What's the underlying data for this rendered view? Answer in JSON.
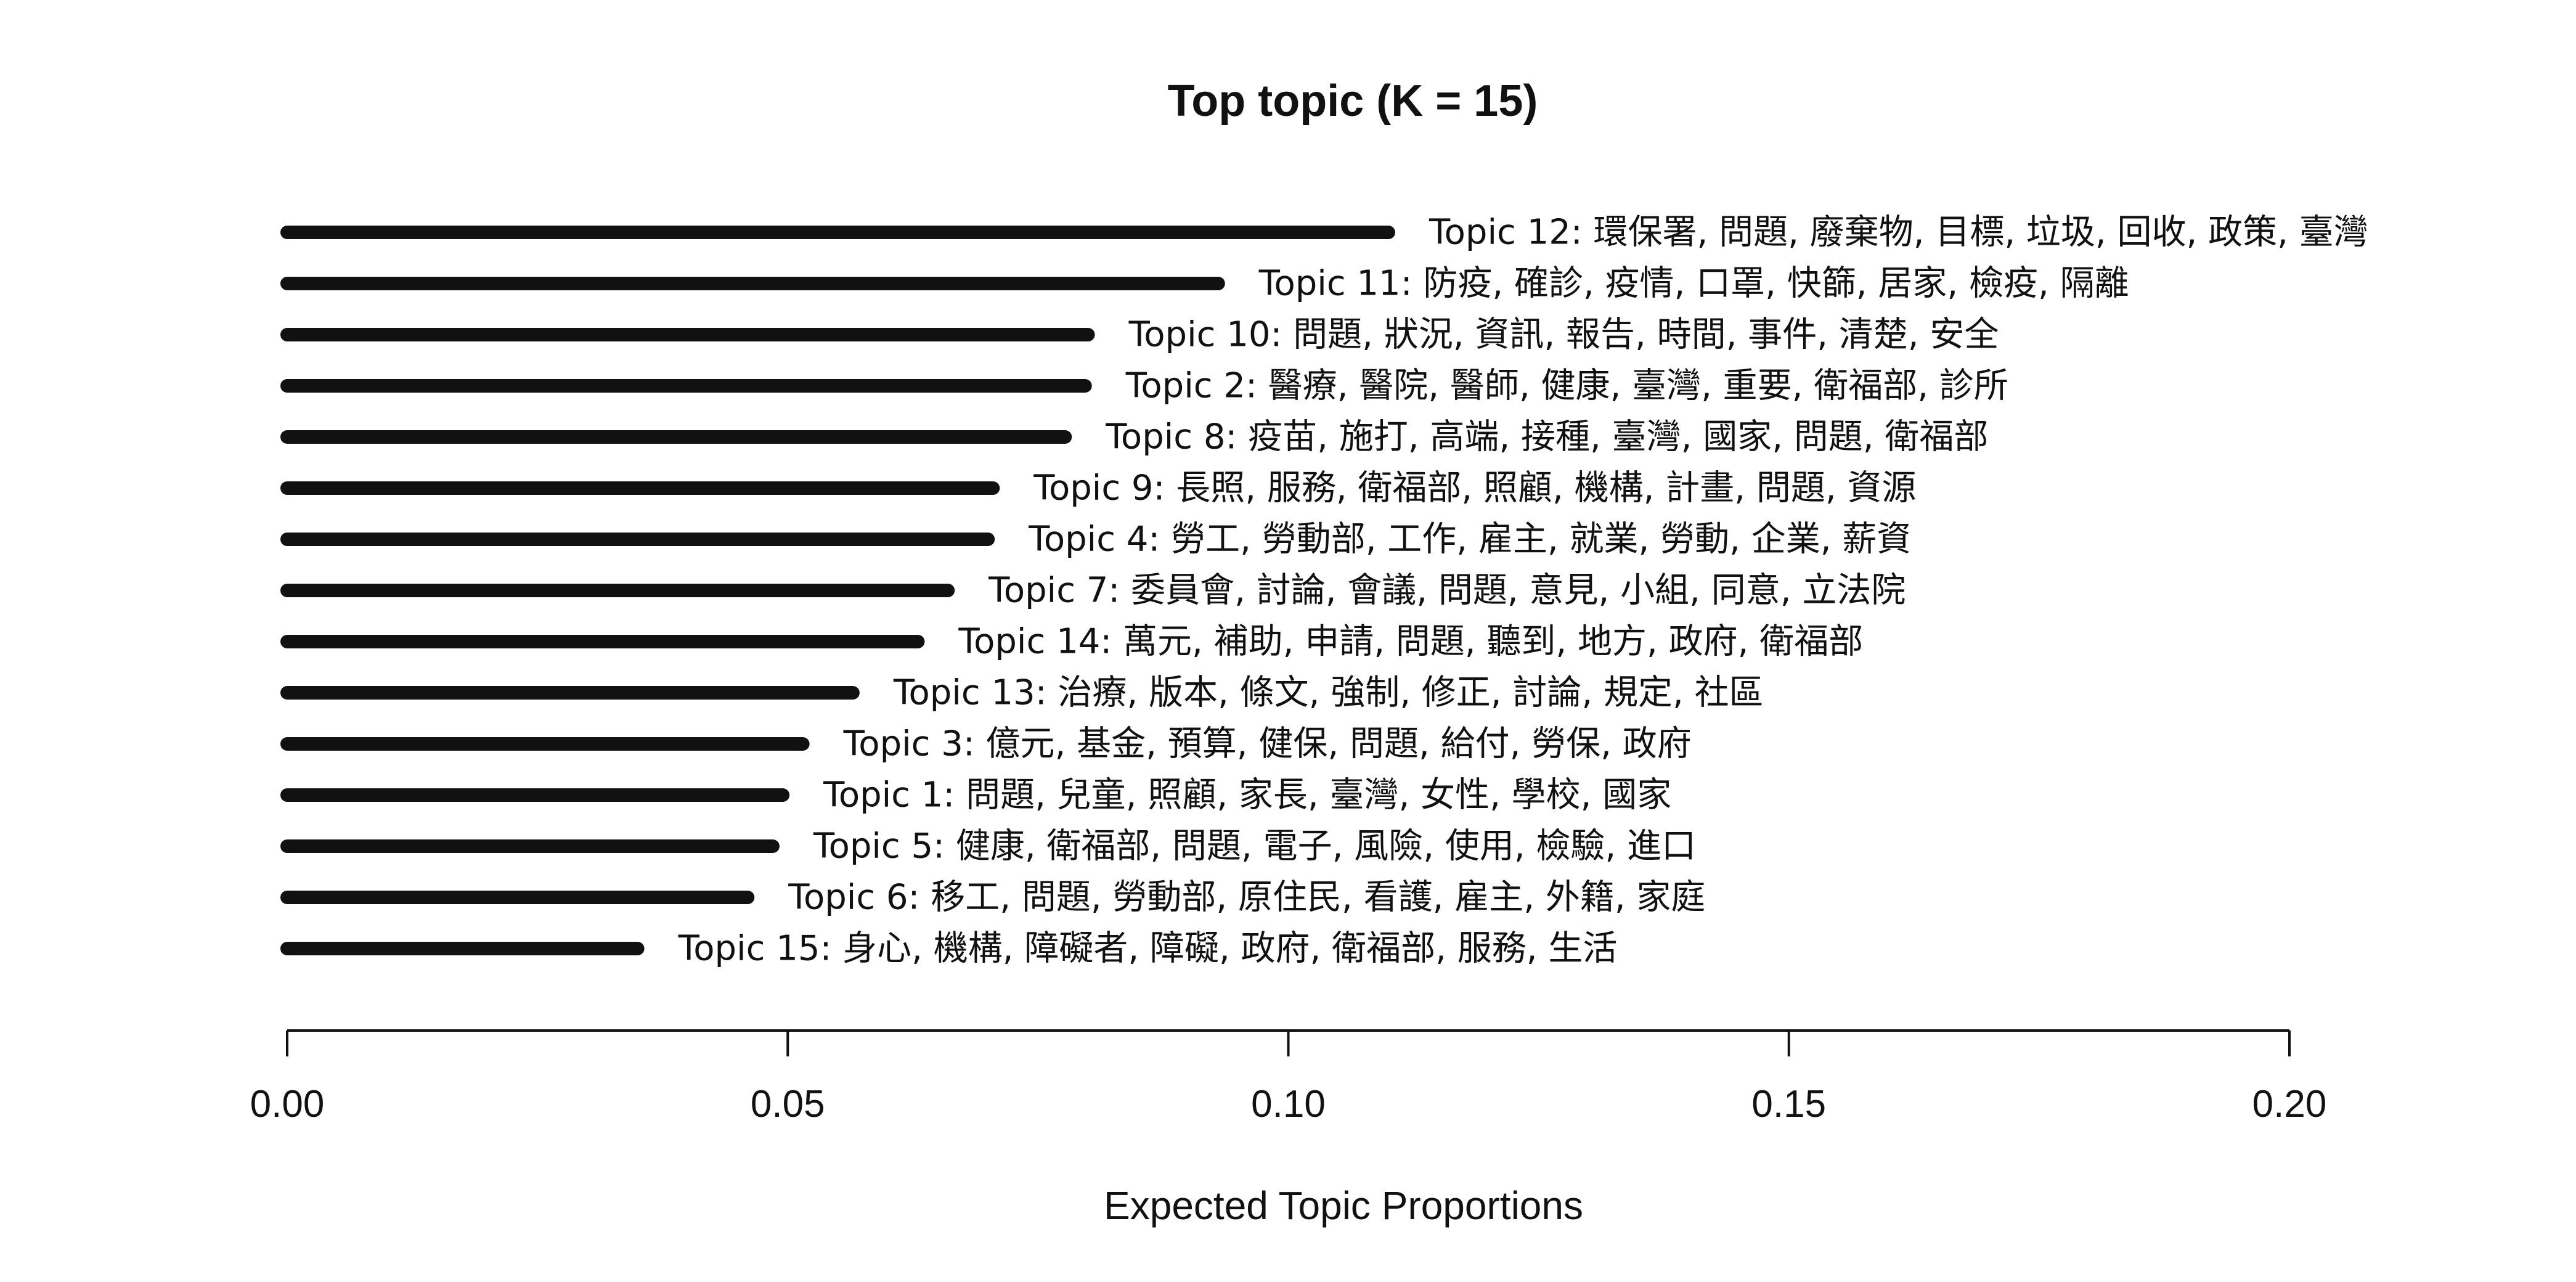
{
  "chart_data": {
    "type": "bar",
    "orientation": "horizontal",
    "title": "Top topic (K = 15)",
    "xlabel": "Expected Topic Proportions",
    "ylabel": "",
    "xlim": [
      0,
      0.2
    ],
    "xticks": [
      0.0,
      0.05,
      0.1,
      0.15,
      0.2
    ],
    "xtick_labels": [
      "0.00",
      "0.05",
      "0.10",
      "0.15",
      "0.20"
    ],
    "grid": false,
    "bar_color": "#111111",
    "bars": [
      {
        "label": "Topic 12: 環保署, 問題, 廢棄物, 目標, 垃圾, 回收, 政策, 臺灣",
        "value": 0.11
      },
      {
        "label": "Topic 11: 防疫, 確診, 疫情, 口罩, 快篩, 居家, 檢疫, 隔離",
        "value": 0.093
      },
      {
        "label": "Topic 10: 問題, 狀況, 資訊, 報告, 時間, 事件, 清楚, 安全",
        "value": 0.08
      },
      {
        "label": "Topic 2: 醫療, 醫院, 醫師, 健康, 臺灣, 重要, 衛福部, 診所",
        "value": 0.0797
      },
      {
        "label": "Topic 8: 疫苗, 施打, 高端, 接種, 臺灣, 國家, 問題, 衛福部",
        "value": 0.0777
      },
      {
        "label": "Topic 9: 長照, 服務, 衛福部, 照顧, 機構, 計畫, 問題, 資源",
        "value": 0.0705
      },
      {
        "label": "Topic 4: 勞工, 勞動部, 工作, 雇主, 就業, 勞動, 企業, 薪資",
        "value": 0.07
      },
      {
        "label": "Topic 7: 委員會, 討論, 會議, 問題, 意見, 小組, 同意, 立法院",
        "value": 0.066
      },
      {
        "label": "Topic 14: 萬元, 補助, 申請, 問題, 聽到, 地方, 政府, 衛福部",
        "value": 0.063
      },
      {
        "label": "Topic 13: 治療, 版本, 條文, 強制, 修正, 討論, 規定, 社區",
        "value": 0.0565
      },
      {
        "label": "Topic 3: 億元, 基金, 預算, 健保, 問題, 給付, 勞保, 政府",
        "value": 0.0515
      },
      {
        "label": "Topic 1: 問題, 兒童, 照顧, 家長, 臺灣, 女性, 學校, 國家",
        "value": 0.0495
      },
      {
        "label": "Topic 5: 健康, 衛福部, 問題, 電子, 風險, 使用, 檢驗, 進口",
        "value": 0.0485
      },
      {
        "label": "Topic 6: 移工, 問題, 勞動部, 原住民, 看護, 雇主, 外籍, 家庭",
        "value": 0.046
      },
      {
        "label": "Topic 15: 身心, 機構, 障礙者, 障礙, 政府, 衛福部, 服務, 生活",
        "value": 0.035
      }
    ]
  }
}
